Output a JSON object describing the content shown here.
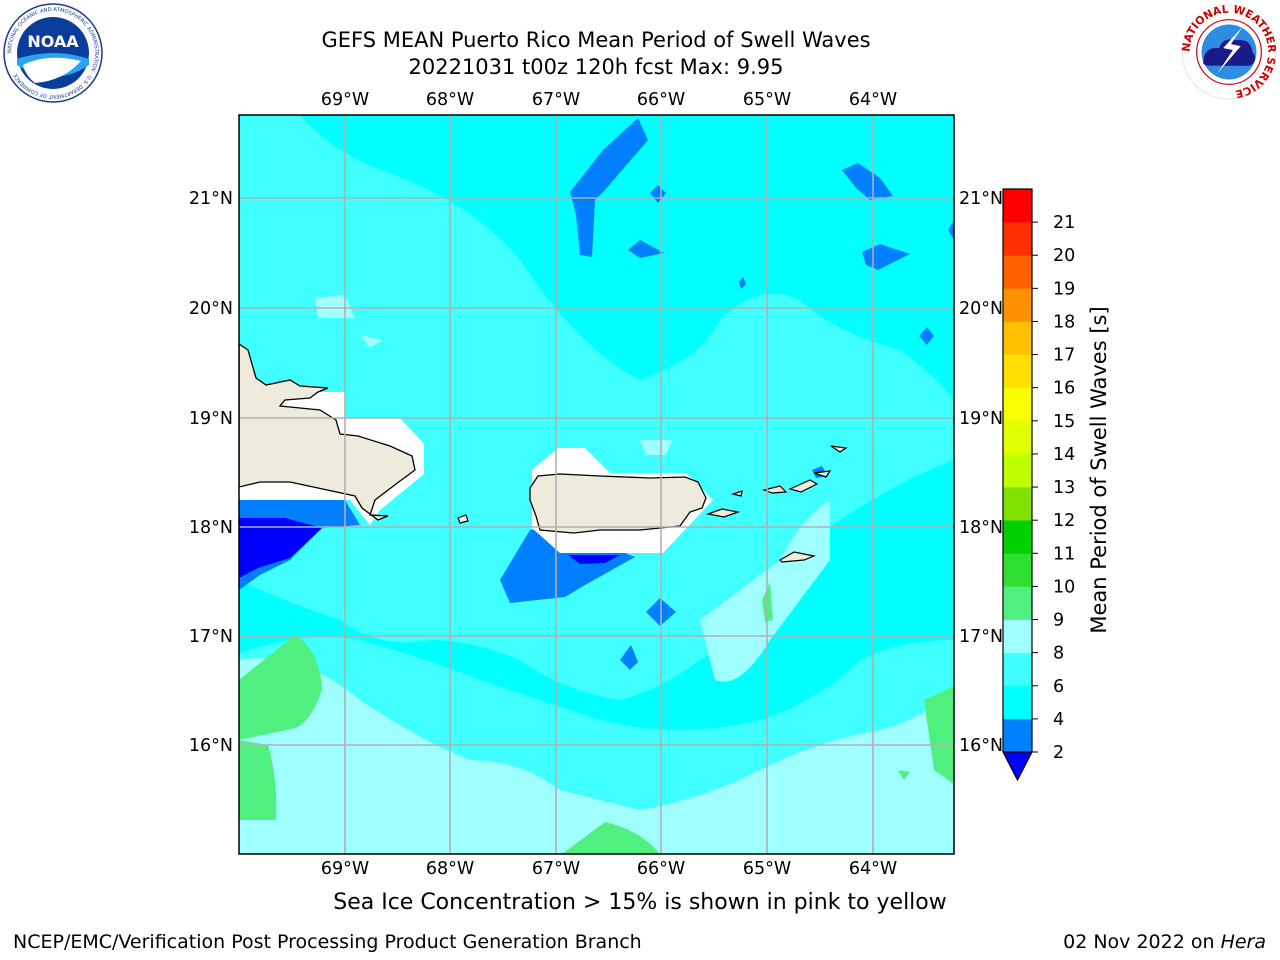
{
  "header": {
    "title_line1": "GEFS MEAN Puerto Rico Mean Period of Swell Waves",
    "title_line2": "20221031 t00z 120h fcst   Max: 9.95"
  },
  "logos": {
    "noaa": {
      "icon": "noaa-logo",
      "text": "NOAA",
      "ring_text": "NATIONAL OCEANIC AND ATMOSPHERIC ADMINISTRATION · U.S. DEPARTMENT OF COMMERCE"
    },
    "nws": {
      "icon": "nws-logo",
      "ring_text": "NATIONAL WEATHER SERVICE"
    }
  },
  "map": {
    "lon_labels": [
      "69°W",
      "68°W",
      "67°W",
      "66°W",
      "65°W",
      "64°W"
    ],
    "lat_labels": [
      "21°N",
      "20°N",
      "19°N",
      "18°N",
      "17°N",
      "16°N"
    ],
    "land_color": "#efebdc",
    "coastline_color": "#000000",
    "grid_color": "#b0b0b0",
    "regions": [
      "Hispaniola",
      "Puerto Rico",
      "Virgin Islands",
      "St. Croix"
    ]
  },
  "colorbar": {
    "label": "Mean Period of Swell Waves [s]",
    "ticks": [
      "2",
      "4",
      "6",
      "8",
      "9",
      "10",
      "11",
      "12",
      "13",
      "14",
      "15",
      "16",
      "17",
      "18",
      "19",
      "20",
      "21"
    ],
    "colors": [
      "#0080ff",
      "#00ffff",
      "#40ffff",
      "#a0ffff",
      "#50f080",
      "#30e030",
      "#00d000",
      "#80e000",
      "#c0ff00",
      "#e0ff00",
      "#f8ff00",
      "#ffe000",
      "#ffc000",
      "#ff9000",
      "#ff6000",
      "#ff3000",
      "#ff0000"
    ],
    "under_color": "#0000ff"
  },
  "footer": {
    "sea_ice_note": "Sea Ice Concentration > 15% is shown in pink to yellow",
    "branch": "NCEP/EMC/Verification Post Processing Product Generation Branch",
    "date": "02 Nov 2022 on ",
    "host": "Hera"
  }
}
